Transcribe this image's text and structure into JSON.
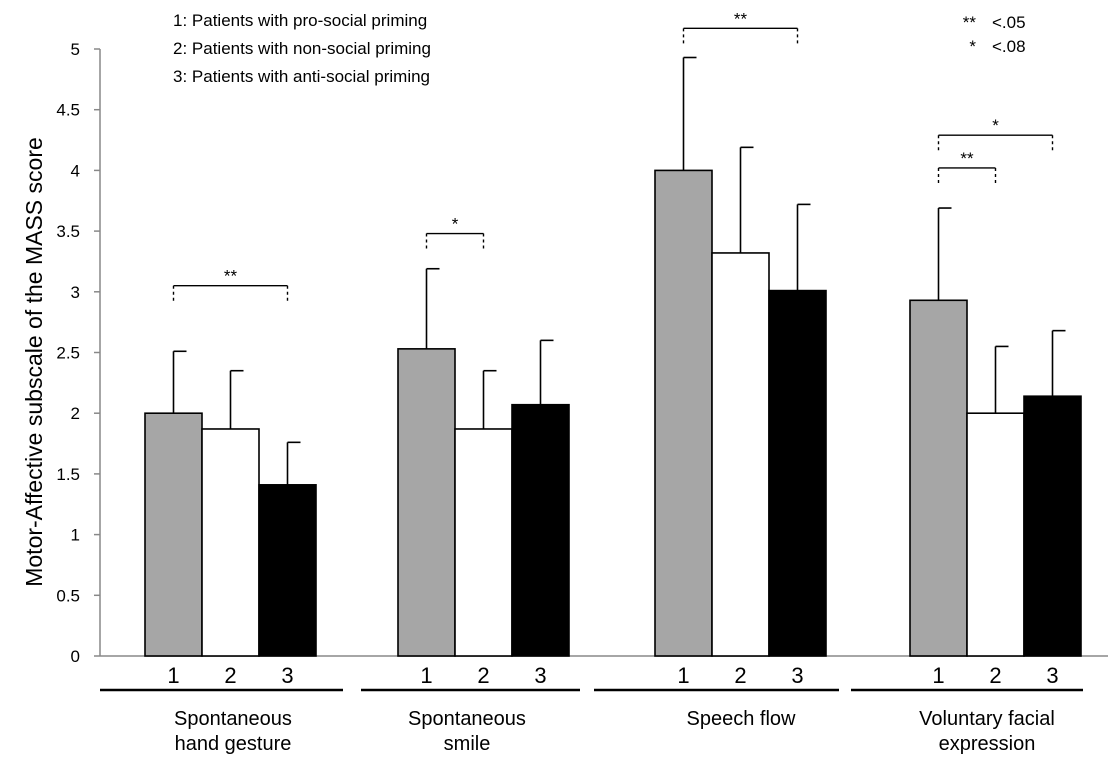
{
  "chart_data": {
    "type": "bar",
    "ylabel": "Motor-Affective subscale of the MASS score",
    "ylim": [
      0,
      5
    ],
    "yticks": [
      "0",
      "0.5",
      "1",
      "1.5",
      "2",
      "2.5",
      "3",
      "3.5",
      "4",
      "4.5",
      "5"
    ],
    "groups": [
      {
        "label_lines": [
          "Spontaneous",
          "hand gesture"
        ],
        "categories": [
          "1",
          "2",
          "3"
        ],
        "values": [
          2.0,
          1.87,
          1.41
        ],
        "errors": [
          0.51,
          0.48,
          0.35
        ]
      },
      {
        "label_lines": [
          "Spontaneous",
          "smile"
        ],
        "categories": [
          "1",
          "2",
          "3"
        ],
        "values": [
          2.53,
          1.87,
          2.07
        ],
        "errors": [
          0.66,
          0.48,
          0.53
        ]
      },
      {
        "label_lines": [
          "Speech flow"
        ],
        "categories": [
          "1",
          "2",
          "3"
        ],
        "values": [
          4.0,
          3.32,
          3.01
        ],
        "errors": [
          0.93,
          0.87,
          0.71
        ]
      },
      {
        "label_lines": [
          "Voluntary facial",
          "expression"
        ],
        "categories": [
          "1",
          "2",
          "3"
        ],
        "values": [
          2.93,
          2.0,
          2.14
        ],
        "errors": [
          0.76,
          0.55,
          0.54
        ]
      }
    ],
    "bar_colors": [
      "#a6a6a6",
      "#ffffff",
      "#000000"
    ],
    "legend": [
      "1: Patients with pro-social priming",
      "2: Patients with non-social priming",
      "3: Patients with anti-social priming"
    ],
    "significance_key": [
      {
        "symbol": "**",
        "text": "<.05"
      },
      {
        "symbol": "*",
        "text": "<.08"
      }
    ],
    "significance_brackets": [
      {
        "group": 0,
        "from": 0,
        "to": 2,
        "symbol": "**",
        "y": 3.05
      },
      {
        "group": 1,
        "from": 0,
        "to": 1,
        "symbol": "*",
        "y": 3.48
      },
      {
        "group": 2,
        "from": 0,
        "to": 2,
        "symbol": "**",
        "y": 5.17
      },
      {
        "group": 3,
        "from": 0,
        "to": 1,
        "symbol": "**",
        "y": 4.02
      },
      {
        "group": 3,
        "from": 0,
        "to": 2,
        "symbol": "*",
        "y": 4.29
      }
    ]
  }
}
